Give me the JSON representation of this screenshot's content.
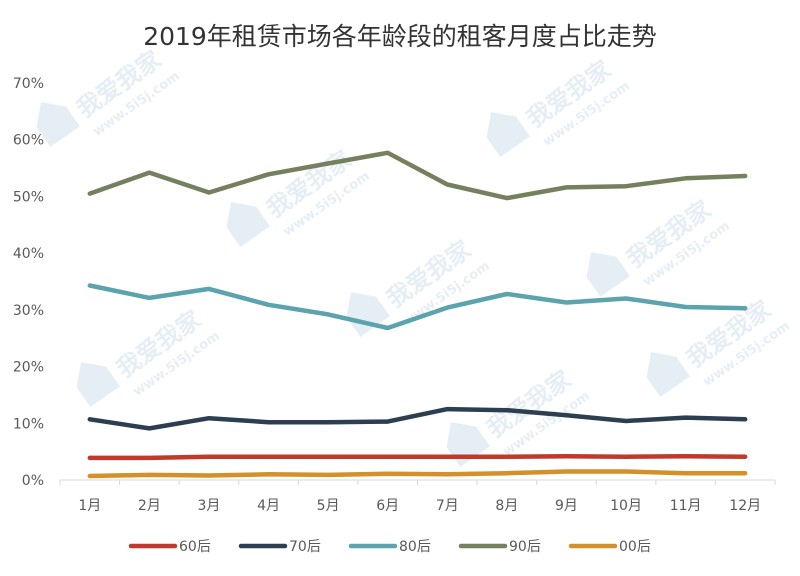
{
  "chart_data": {
    "type": "line",
    "title": "2019年租赁市场各年龄段的租客月度占比走势",
    "xlabel": "",
    "ylabel": "",
    "categories": [
      "1月",
      "2月",
      "3月",
      "4月",
      "5月",
      "6月",
      "7月",
      "8月",
      "9月",
      "10月",
      "11月",
      "12月"
    ],
    "ylim": [
      0,
      70
    ],
    "yticks": [
      "0%",
      "10%",
      "20%",
      "30%",
      "40%",
      "50%",
      "60%",
      "70%"
    ],
    "grid": false,
    "legend_position": "bottom",
    "series": [
      {
        "name": "60后",
        "color": "#c0392b",
        "values": [
          3.9,
          3.9,
          4.1,
          4.1,
          4.1,
          4.1,
          4.1,
          4.1,
          4.2,
          4.1,
          4.2,
          4.1
        ]
      },
      {
        "name": "70后",
        "color": "#2c3e50",
        "values": [
          10.7,
          9.1,
          10.9,
          10.2,
          10.2,
          10.3,
          12.5,
          12.3,
          11.4,
          10.4,
          11.0,
          10.7
        ]
      },
      {
        "name": "80后",
        "color": "#5ba3ad",
        "values": [
          34.3,
          32.1,
          33.7,
          30.9,
          29.2,
          26.8,
          30.4,
          32.8,
          31.3,
          32.0,
          30.5,
          30.3
        ]
      },
      {
        "name": "90后",
        "color": "#75805f",
        "values": [
          50.5,
          54.2,
          50.7,
          53.9,
          55.8,
          57.7,
          52.1,
          49.7,
          51.6,
          51.8,
          53.2,
          53.6
        ]
      },
      {
        "name": "00后",
        "color": "#d4912b",
        "values": [
          0.7,
          0.9,
          0.8,
          1.0,
          0.9,
          1.1,
          1.0,
          1.2,
          1.5,
          1.5,
          1.2,
          1.2
        ]
      }
    ]
  },
  "watermark": {
    "text_cn": "我爱我家",
    "text_url": "www.5i5j.com"
  }
}
